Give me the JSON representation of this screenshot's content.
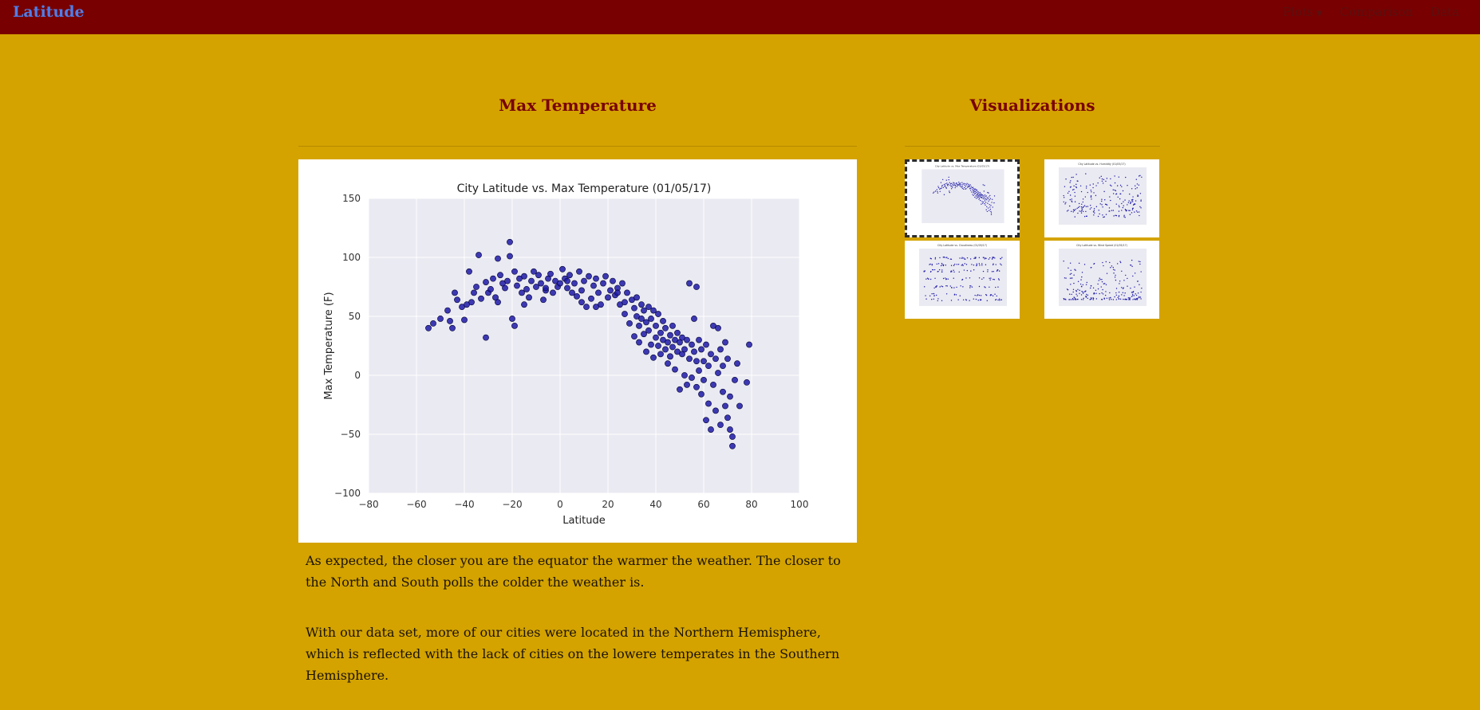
{
  "nav": {
    "brand": "Latitude",
    "plots_label": "Plots",
    "comparison_label": "Comparison",
    "data_label": "Data"
  },
  "main": {
    "title": "Max Temperature",
    "paragraphs": [
      "As expected, the closer you are the equator the warmer the weather. The closer to the North and South polls the colder the weather is.",
      "With our data set, more of our cities were located in the Northern Hemisphere, which is reflected with the lack of cities on the lowere temperates in the Southern Hemisphere."
    ]
  },
  "sidebar": {
    "title": "Visualizations",
    "thumbnails": [
      {
        "label": "City Latitude vs. Max Temperature (01/05/17)",
        "selected": true
      },
      {
        "label": "City Latitude vs. Humidity (01/05/17)",
        "selected": false
      },
      {
        "label": "City Latitude vs. Cloudiness (01/05/17)",
        "selected": false
      },
      {
        "label": "City Latitude vs. Wind Speed (01/05/17)",
        "selected": false
      }
    ]
  },
  "colors": {
    "navbar": "#780000",
    "page_bg": "#d4a300",
    "brand": "#4f7ee8",
    "heading": "#780000",
    "marker": "#1f1aa8",
    "plot_bg": "#eaeaf2"
  },
  "chart_data": {
    "type": "scatter",
    "title": "City Latitude vs. Max Temperature (01/05/17)",
    "xlabel": "Latitude",
    "ylabel": "Max Temperature (F)",
    "xlim": [
      -80,
      100
    ],
    "ylim": [
      -100,
      150
    ],
    "xticks": [
      -80,
      -60,
      -40,
      -20,
      0,
      20,
      40,
      60,
      80,
      100
    ],
    "yticks": [
      -100,
      -50,
      0,
      50,
      100,
      150
    ],
    "grid": true,
    "points": [
      [
        -55,
        40
      ],
      [
        -53,
        44
      ],
      [
        -47,
        55
      ],
      [
        -46,
        46
      ],
      [
        -45,
        40
      ],
      [
        -43,
        64
      ],
      [
        -41,
        58
      ],
      [
        -40,
        47
      ],
      [
        -38,
        88
      ],
      [
        -37,
        62
      ],
      [
        -36,
        70
      ],
      [
        -35,
        75
      ],
      [
        -34,
        102
      ],
      [
        -33,
        65
      ],
      [
        -31,
        32
      ],
      [
        -31,
        79
      ],
      [
        -30,
        70
      ],
      [
        -29,
        73
      ],
      [
        -28,
        82
      ],
      [
        -27,
        66
      ],
      [
        -26,
        99
      ],
      [
        -25,
        85
      ],
      [
        -24,
        78
      ],
      [
        -23,
        74
      ],
      [
        -22,
        80
      ],
      [
        -21,
        113
      ],
      [
        -21,
        101
      ],
      [
        -20,
        48
      ],
      [
        -19,
        42
      ],
      [
        -19,
        88
      ],
      [
        -18,
        76
      ],
      [
        -17,
        82
      ],
      [
        -16,
        70
      ],
      [
        -15,
        84
      ],
      [
        -14,
        73
      ],
      [
        -13,
        66
      ],
      [
        -12,
        80
      ],
      [
        -11,
        88
      ],
      [
        -10,
        75
      ],
      [
        -9,
        85
      ],
      [
        -8,
        78
      ],
      [
        -7,
        64
      ],
      [
        -6,
        72
      ],
      [
        -5,
        82
      ],
      [
        -4,
        86
      ],
      [
        -3,
        70
      ],
      [
        -2,
        80
      ],
      [
        -1,
        75
      ],
      [
        0,
        78
      ],
      [
        1,
        90
      ],
      [
        2,
        82
      ],
      [
        3,
        74
      ],
      [
        4,
        85
      ],
      [
        5,
        70
      ],
      [
        6,
        78
      ],
      [
        7,
        67
      ],
      [
        8,
        88
      ],
      [
        9,
        72
      ],
      [
        10,
        80
      ],
      [
        11,
        58
      ],
      [
        12,
        84
      ],
      [
        13,
        65
      ],
      [
        14,
        76
      ],
      [
        15,
        82
      ],
      [
        16,
        70
      ],
      [
        17,
        60
      ],
      [
        18,
        78
      ],
      [
        19,
        84
      ],
      [
        20,
        66
      ],
      [
        21,
        72
      ],
      [
        22,
        80
      ],
      [
        23,
        68
      ],
      [
        24,
        74
      ],
      [
        25,
        60
      ],
      [
        26,
        78
      ],
      [
        27,
        62
      ],
      [
        27,
        52
      ],
      [
        28,
        70
      ],
      [
        29,
        44
      ],
      [
        30,
        64
      ],
      [
        31,
        57
      ],
      [
        31,
        33
      ],
      [
        32,
        50
      ],
      [
        32,
        66
      ],
      [
        33,
        42
      ],
      [
        33,
        28
      ],
      [
        34,
        60
      ],
      [
        34,
        48
      ],
      [
        35,
        35
      ],
      [
        35,
        55
      ],
      [
        36,
        45
      ],
      [
        36,
        20
      ],
      [
        37,
        58
      ],
      [
        37,
        38
      ],
      [
        38,
        48
      ],
      [
        38,
        26
      ],
      [
        39,
        55
      ],
      [
        39,
        15
      ],
      [
        40,
        32
      ],
      [
        40,
        42
      ],
      [
        41,
        25
      ],
      [
        41,
        52
      ],
      [
        42,
        36
      ],
      [
        42,
        18
      ],
      [
        43,
        30
      ],
      [
        43,
        46
      ],
      [
        44,
        22
      ],
      [
        44,
        40
      ],
      [
        45,
        28
      ],
      [
        45,
        10
      ],
      [
        46,
        34
      ],
      [
        46,
        16
      ],
      [
        47,
        24
      ],
      [
        47,
        42
      ],
      [
        48,
        30
      ],
      [
        48,
        5
      ],
      [
        49,
        20
      ],
      [
        49,
        36
      ],
      [
        50,
        28
      ],
      [
        50,
        -12
      ],
      [
        51,
        18
      ],
      [
        51,
        32
      ],
      [
        52,
        22
      ],
      [
        52,
        0
      ],
      [
        53,
        30
      ],
      [
        53,
        -8
      ],
      [
        54,
        78
      ],
      [
        54,
        14
      ],
      [
        55,
        26
      ],
      [
        55,
        -2
      ],
      [
        56,
        20
      ],
      [
        56,
        48
      ],
      [
        57,
        12
      ],
      [
        57,
        -10
      ],
      [
        57,
        75
      ],
      [
        58,
        30
      ],
      [
        58,
        4
      ],
      [
        59,
        22
      ],
      [
        59,
        -16
      ],
      [
        60,
        12
      ],
      [
        60,
        -4
      ],
      [
        61,
        26
      ],
      [
        61,
        -38
      ],
      [
        62,
        8
      ],
      [
        62,
        -24
      ],
      [
        63,
        18
      ],
      [
        63,
        -46
      ],
      [
        64,
        42
      ],
      [
        64,
        -8
      ],
      [
        65,
        14
      ],
      [
        65,
        -30
      ],
      [
        66,
        40
      ],
      [
        66,
        2
      ],
      [
        67,
        22
      ],
      [
        67,
        -42
      ],
      [
        68,
        -14
      ],
      [
        68,
        8
      ],
      [
        69,
        -26
      ],
      [
        69,
        28
      ],
      [
        70,
        -36
      ],
      [
        70,
        14
      ],
      [
        71,
        -46
      ],
      [
        71,
        -18
      ],
      [
        72,
        -52
      ],
      [
        72,
        -60
      ],
      [
        73,
        -4
      ],
      [
        74,
        10
      ],
      [
        75,
        -26
      ],
      [
        78,
        -6
      ],
      [
        79,
        26
      ],
      [
        -50,
        48
      ],
      [
        -44,
        70
      ],
      [
        -39,
        60
      ],
      [
        -26,
        62
      ],
      [
        -15,
        60
      ],
      [
        -6,
        74
      ],
      [
        3,
        80
      ],
      [
        9,
        62
      ],
      [
        15,
        58
      ],
      [
        24,
        70
      ]
    ]
  }
}
